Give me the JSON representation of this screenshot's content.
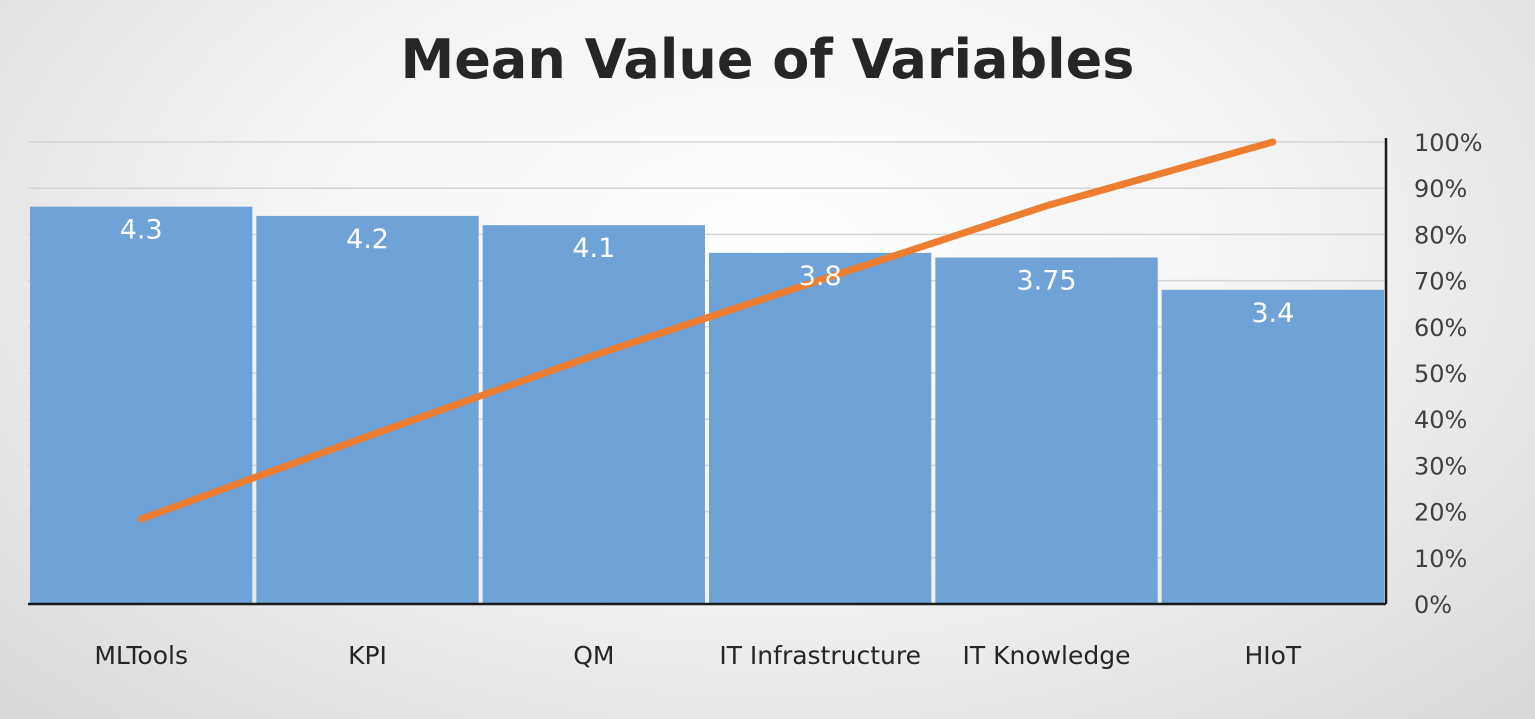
{
  "chart_data": {
    "type": "bar",
    "title": "Mean Value of Variables",
    "categories": [
      "MLTools",
      "KPI",
      "QM",
      "IT Infrastructure",
      "IT Knowledge",
      "HIoT"
    ],
    "series": [
      {
        "type": "bar",
        "values": [
          4.3,
          4.2,
          4.1,
          3.8,
          3.75,
          3.4
        ],
        "data_labels": [
          "4.3",
          "4.2",
          "4.1",
          "3.8",
          "3.75",
          "3.4"
        ],
        "color": "#6fa3d8"
      },
      {
        "type": "line",
        "axis": "secondary",
        "values": [
          0.184,
          0.363,
          0.538,
          0.701,
          0.862,
          1.0
        ],
        "color": "#ed7d31"
      }
    ],
    "ylim": [
      0,
      5
    ],
    "y2lim": [
      0,
      1
    ],
    "y2_ticks": [
      "0%",
      "10%",
      "20%",
      "30%",
      "40%",
      "50%",
      "60%",
      "70%",
      "80%",
      "90%",
      "100%"
    ],
    "grid": true,
    "legend": "none"
  }
}
